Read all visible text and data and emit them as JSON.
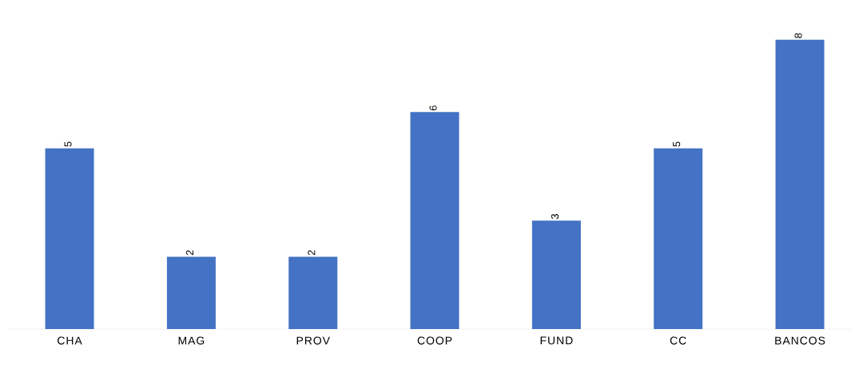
{
  "chart_data": {
    "type": "bar",
    "categories": [
      "CHA",
      "MAG",
      "PROV",
      "COOP",
      "FUND",
      "CC",
      "BANCOS"
    ],
    "values": [
      5,
      2,
      2,
      6,
      3,
      5,
      8
    ],
    "color": "#4472c4",
    "data_labels": true,
    "grid": false
  }
}
